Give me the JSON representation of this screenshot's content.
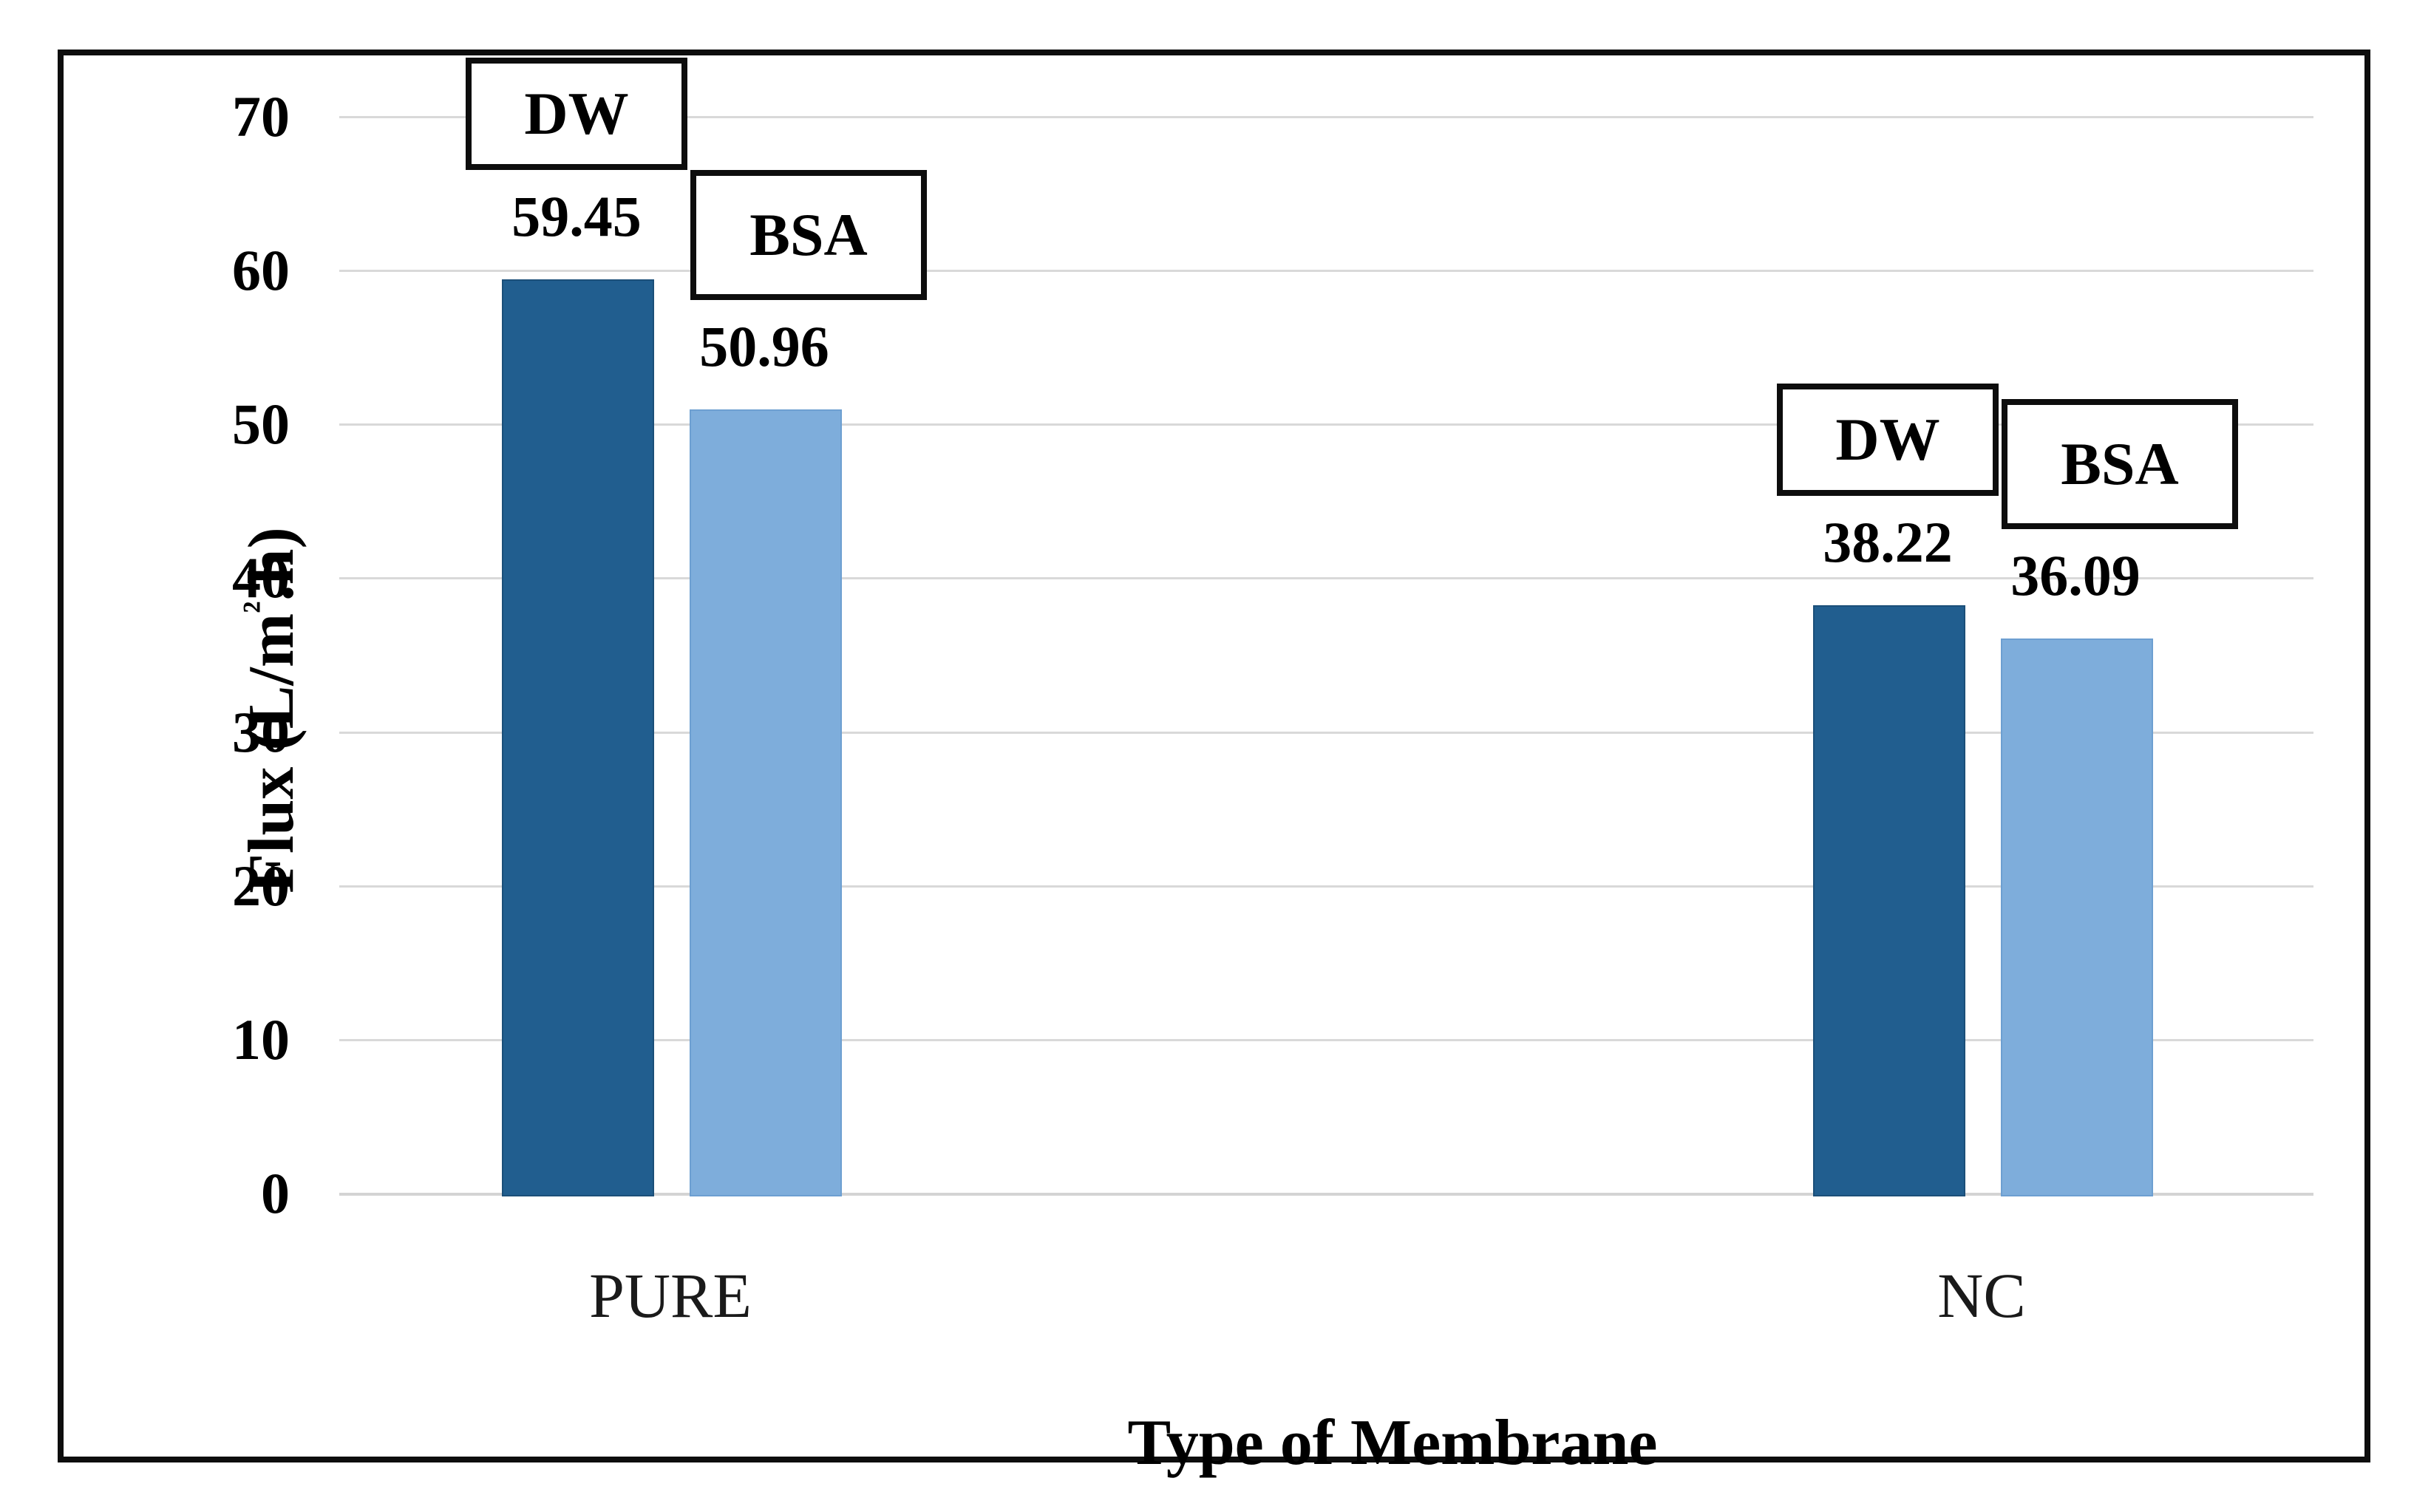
{
  "chart_data": {
    "type": "bar",
    "title": "",
    "categories": [
      "PURE",
      "NC"
    ],
    "series": [
      {
        "name": "DW",
        "values": [
          59.45,
          38.22
        ],
        "value_labels": [
          "59.45",
          "38.22"
        ],
        "color": "#215e8f"
      },
      {
        "name": "BSA",
        "values": [
          50.96,
          36.09
        ],
        "value_labels": [
          "50.96",
          "36.09"
        ],
        "color": "#7eaddb"
      }
    ],
    "xlabel": "Type of Membrane",
    "ylabel": "Flux (L/m².h)",
    "ylim": [
      0,
      70
    ],
    "ytick_step": 10,
    "yticks": [
      "0",
      "10",
      "20",
      "30",
      "40",
      "50",
      "60",
      "70"
    ],
    "grid": true,
    "legend_position": "boxed callouts above each bar",
    "colors": {
      "dw_bar": "#215e8f",
      "bsa_bar": "#7eaddb",
      "gridline": "#d9d9d9",
      "frame_border": "#0d0d0d",
      "text": "#000000",
      "background": "#ffffff"
    }
  }
}
